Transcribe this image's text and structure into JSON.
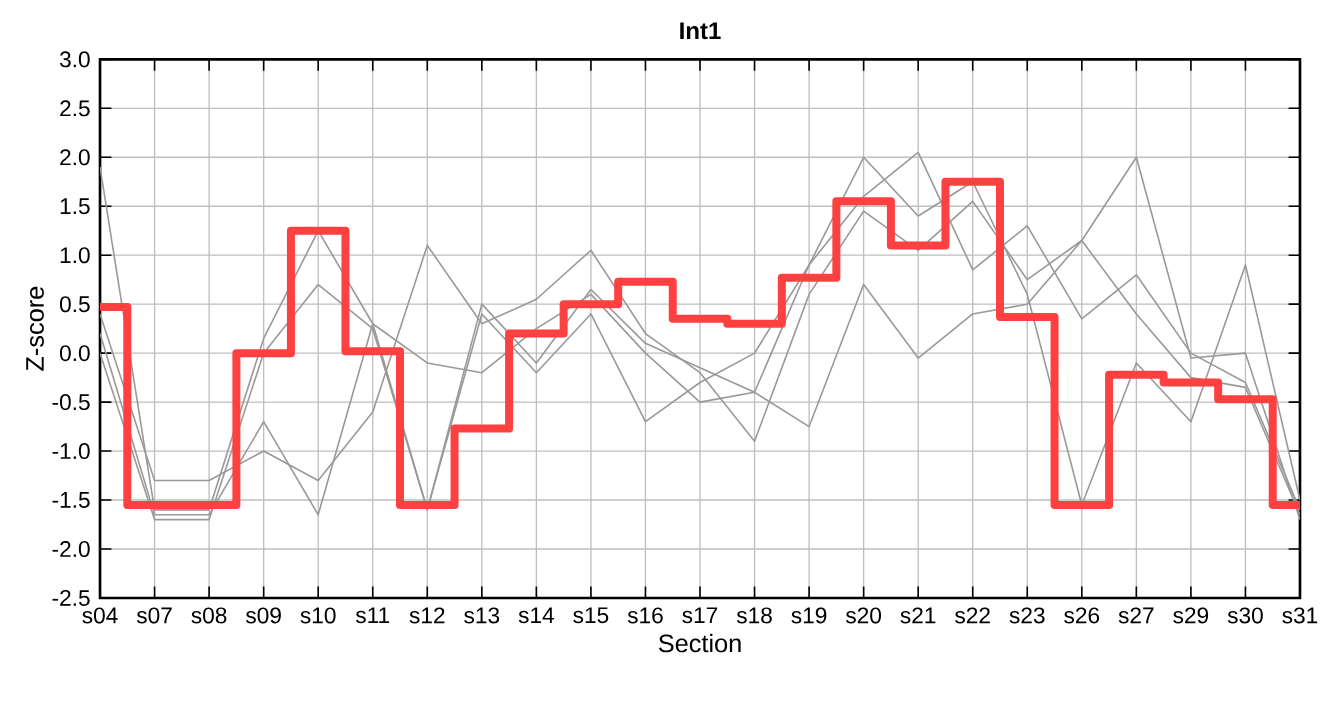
{
  "chart_data": {
    "type": "line",
    "title": "Int1",
    "xlabel": "Section",
    "ylabel": "Z-score",
    "categories": [
      "s04",
      "s07",
      "s08",
      "s09",
      "s10",
      "s11",
      "s12",
      "s13",
      "s14",
      "s15",
      "s16",
      "s17",
      "s18",
      "s19",
      "s20",
      "s21",
      "s22",
      "s23",
      "s26",
      "s27",
      "s29",
      "s30",
      "s31"
    ],
    "series": [
      {
        "color": "#999999",
        "values": [
          1.9,
          -1.6,
          -1.6,
          0.15,
          1.25,
          0.3,
          -1.6,
          0.5,
          -0.1,
          0.65,
          0.1,
          -0.15,
          -0.4,
          0.9,
          2.0,
          1.4,
          1.75,
          0.6,
          -1.55,
          -0.1,
          -0.7,
          0.9,
          -1.5
        ]
      },
      {
        "color": "#999999",
        "values": [
          0.0,
          -1.7,
          -1.7,
          0.0,
          0.7,
          0.25,
          -1.6,
          0.4,
          -0.2,
          0.4,
          -0.7,
          -0.3,
          0.0,
          0.9,
          1.6,
          2.05,
          0.85,
          1.3,
          0.35,
          0.8,
          0.0,
          -0.3,
          -1.6
        ]
      },
      {
        "color": "#999999",
        "values": [
          0.4,
          -1.3,
          -1.3,
          -1.0,
          -1.3,
          -0.6,
          1.1,
          0.3,
          0.55,
          1.05,
          0.2,
          -0.2,
          -0.9,
          0.6,
          1.45,
          1.05,
          1.55,
          0.75,
          1.15,
          2.0,
          -0.05,
          0.0,
          -1.7
        ]
      },
      {
        "color": "#999999",
        "values": [
          0.2,
          -1.65,
          -1.65,
          -0.7,
          -1.65,
          0.3,
          -0.1,
          -0.2,
          0.25,
          0.6,
          0.0,
          -0.5,
          -0.4,
          -0.75,
          0.7,
          -0.05,
          0.4,
          0.5,
          1.15,
          0.4,
          -0.25,
          -0.35,
          -1.65
        ]
      },
      {
        "type": "step",
        "color": "#ff4040",
        "values": [
          0.47,
          -1.55,
          -1.55,
          0.0,
          1.25,
          0.02,
          -1.55,
          -0.77,
          0.2,
          0.5,
          0.73,
          0.35,
          0.3,
          0.77,
          1.55,
          1.1,
          1.75,
          0.37,
          -1.55,
          -0.22,
          -0.3,
          -0.47,
          -1.55
        ]
      }
    ],
    "ylim": [
      -2.5,
      3.0
    ],
    "yticks": [
      -2.5,
      {
        "value": -2,
        "label": "-2.0"
      },
      -1.5,
      {
        "value": -1,
        "label": "-1.0"
      },
      -0.5,
      {
        "value": 0,
        "label": "0.0"
      },
      0.5,
      {
        "value": 1,
        "label": "1.0"
      },
      1.5,
      {
        "value": 2,
        "label": "2.0"
      },
      2.5,
      {
        "value": 3,
        "label": "3.0"
      }
    ],
    "grid": true,
    "legend": false
  }
}
